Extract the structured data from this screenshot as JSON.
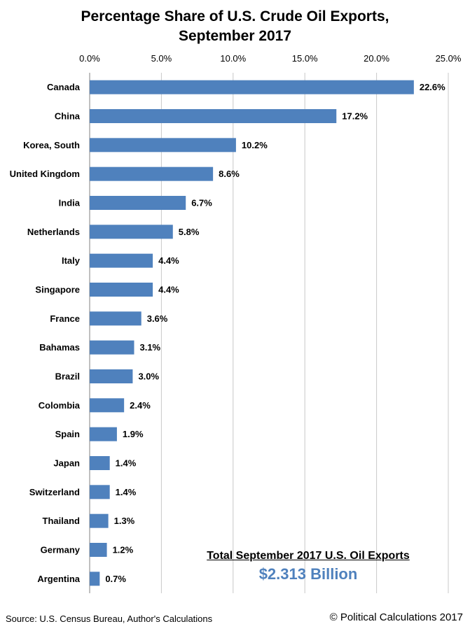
{
  "chart_data": {
    "type": "bar",
    "orientation": "horizontal",
    "title_line1": "Percentage Share of U.S. Crude Oil Exports,",
    "title_line2": "September 2017",
    "xlabel": "",
    "ylabel": "",
    "xlim": [
      0,
      25
    ],
    "ticks": [
      0,
      5,
      10,
      15,
      20,
      25
    ],
    "tick_labels": [
      "0.0%",
      "5.0%",
      "10.0%",
      "15.0%",
      "20.0%",
      "25.0%"
    ],
    "axis_position": "top",
    "grid": true,
    "categories": [
      "Canada",
      "China",
      "Korea, South",
      "United Kingdom",
      "India",
      "Netherlands",
      "Italy",
      "Singapore",
      "France",
      "Bahamas",
      "Brazil",
      "Colombia",
      "Spain",
      "Japan",
      "Switzerland",
      "Thailand",
      "Germany",
      "Argentina"
    ],
    "values": [
      22.6,
      17.2,
      10.2,
      8.6,
      6.7,
      5.8,
      4.4,
      4.4,
      3.6,
      3.1,
      3.0,
      2.4,
      1.9,
      1.4,
      1.4,
      1.3,
      1.2,
      0.7
    ],
    "value_labels": [
      "22.6%",
      "17.2%",
      "10.2%",
      "8.6%",
      "6.7%",
      "5.8%",
      "4.4%",
      "4.4%",
      "3.6%",
      "3.1%",
      "3.0%",
      "2.4%",
      "1.9%",
      "1.4%",
      "1.4%",
      "1.3%",
      "1.2%",
      "0.7%"
    ],
    "bar_color": "#4f81bd",
    "grid_color": "#c8c8c8"
  },
  "annotation": {
    "label": "Total September 2017 U.S. Oil Exports",
    "value": "$2.313 Billion",
    "value_color": "#4f81bd"
  },
  "footer": {
    "source": "Source: U.S. Census Bureau, Author's Calculations",
    "credit": "© Political Calculations 2017"
  }
}
